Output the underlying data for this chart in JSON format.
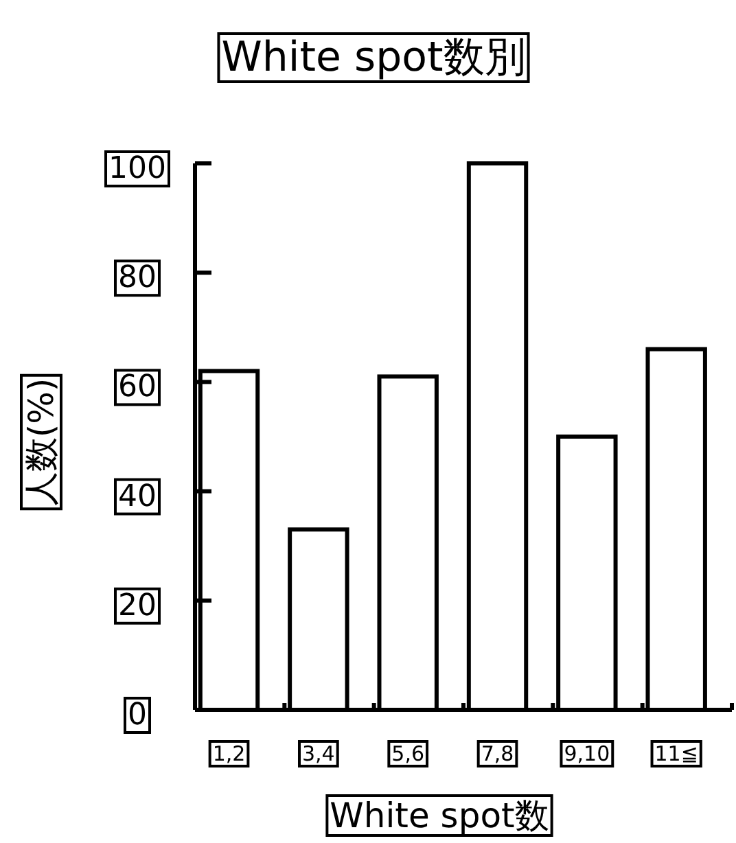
{
  "chart_data": {
    "type": "bar",
    "title": "White spot数別",
    "xlabel": "White spot数",
    "ylabel": "人数(%)",
    "categories": [
      "1,2",
      "3,4",
      "5,6",
      "7,8",
      "9,10",
      "11≦"
    ],
    "values": [
      62,
      33,
      61,
      100,
      50,
      66
    ],
    "color": "#ffffff",
    "ylim": [
      0,
      100
    ],
    "yticks": [
      0,
      20,
      40,
      60,
      80,
      100
    ],
    "grid": false
  }
}
